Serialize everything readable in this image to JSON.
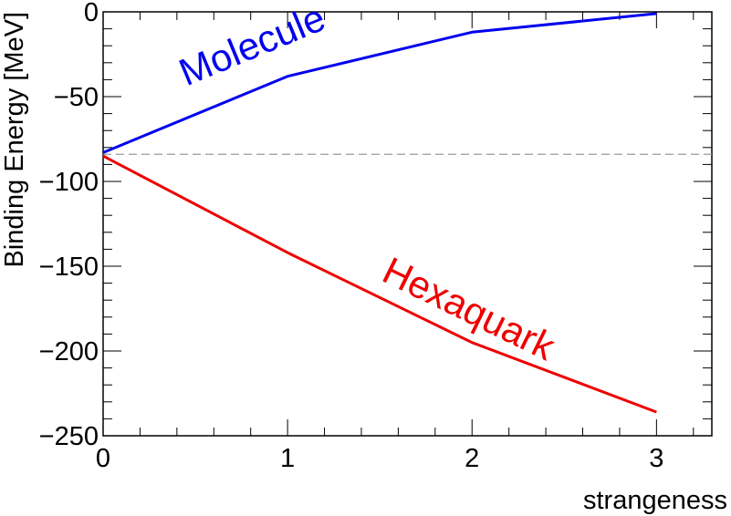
{
  "chart_data": {
    "type": "line",
    "xlabel": "strangeness",
    "ylabel": "Binding Energy [MeV]",
    "xlim": [
      0,
      3.3
    ],
    "ylim": [
      -250,
      0
    ],
    "x_ticks": [
      0,
      1,
      2,
      3
    ],
    "y_ticks": [
      0,
      -50,
      -100,
      -150,
      -200,
      -250
    ],
    "x_tick_labels": [
      "0",
      "1",
      "2",
      "3"
    ],
    "y_tick_labels": [
      "0",
      "−50",
      "−100",
      "−150",
      "−200",
      "−250"
    ],
    "series": [
      {
        "name": "Molecule",
        "color": "#0000ee",
        "x": [
          0,
          1,
          2,
          3
        ],
        "y": [
          -83,
          -38,
          -12,
          -1
        ]
      },
      {
        "name": "Hexaquark",
        "color": "#ee0000",
        "x": [
          0,
          1,
          2,
          3
        ],
        "y": [
          -85,
          -142,
          -195,
          -236
        ]
      }
    ],
    "reference_line": {
      "y": -84,
      "style": "dashed",
      "color": "#999999"
    },
    "annotations": [
      {
        "text": "Molecule",
        "series": 0,
        "x": 0.45,
        "y": -44,
        "color": "#0000ee"
      },
      {
        "text": "Hexaquark",
        "series": 1,
        "x": 1.5,
        "y": -158,
        "color": "#ee0000"
      }
    ],
    "grid": false,
    "legend": "none"
  }
}
